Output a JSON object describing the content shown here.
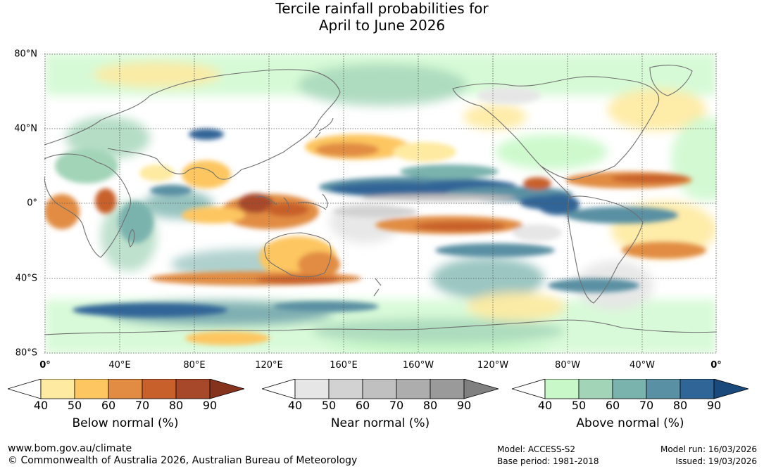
{
  "title": {
    "line1": "Tercile rainfall probabilities for",
    "line2": "April to June 2026"
  },
  "axes": {
    "lat_labels": [
      "80°N",
      "40°N",
      "0°",
      "40°S",
      "80°S"
    ],
    "lon_labels": [
      "0°",
      "40°E",
      "80°E",
      "120°E",
      "160°E",
      "160°W",
      "120°W",
      "80°W",
      "40°W",
      "0°"
    ]
  },
  "colorbars": [
    {
      "name": "below",
      "title": "Below normal (%)",
      "ticks": [
        "40",
        "50",
        "60",
        "70",
        "80",
        "90"
      ],
      "colors": [
        "#ffffff",
        "#feeaa0",
        "#fdc661",
        "#e18c42",
        "#c8602c",
        "#a7482a",
        "#86331d"
      ]
    },
    {
      "name": "near",
      "title": "Near normal (%)",
      "ticks": [
        "40",
        "50",
        "60",
        "70",
        "80",
        "90"
      ],
      "colors": [
        "#ffffff",
        "#e6e6e6",
        "#d2d2d2",
        "#c0c0c0",
        "#adadad",
        "#9a9a9a",
        "#808080"
      ]
    },
    {
      "name": "above",
      "title": "Above normal (%)",
      "ticks": [
        "40",
        "50",
        "60",
        "70",
        "80",
        "90"
      ],
      "colors": [
        "#ffffff",
        "#c8f8c8",
        "#a2d4b8",
        "#7ab3ae",
        "#5a90a3",
        "#306597",
        "#1a4a7c"
      ]
    }
  ],
  "footer": {
    "url": "www.bom.gov.au/climate",
    "copyright": "© Commonwealth of Australia 2026, Australian Bureau of Meteorology",
    "model": "Model: ACCESS-S2",
    "base_period": "Base period: 1981-2018",
    "model_run": "Model run: 16/03/2026",
    "issued": "Issued: 19/03/2026"
  },
  "map_colors": {
    "ocean": "#ffffff",
    "coast": "#707070",
    "grid": "#555555"
  }
}
